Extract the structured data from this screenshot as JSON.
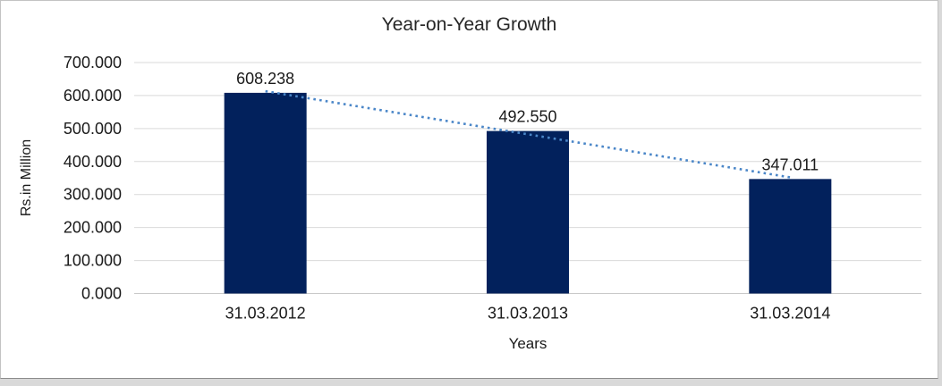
{
  "chart_data": {
    "type": "bar",
    "title": "Year-on-Year Growth",
    "categories": [
      "31.03.2012",
      "31.03.2013",
      "31.03.2014"
    ],
    "values": [
      608.238,
      492.55,
      347.011
    ],
    "value_labels": [
      "608.238",
      "492.550",
      "347.011"
    ],
    "xlabel": "Years",
    "ylabel": "Rs.in Million",
    "ylim": [
      0,
      700
    ],
    "ytick_step": 100,
    "ytick_labels": [
      "0.000",
      "100.000",
      "200.000",
      "300.000",
      "400.000",
      "500.000",
      "600.000",
      "700.000"
    ],
    "grid": true,
    "legend": "none",
    "trendline": {
      "type": "linear",
      "style": "dotted"
    },
    "colors": {
      "bar": "#02215C",
      "trendline": "#4A86C8",
      "gridline": "#D9D9D9",
      "axis_line": "#C9C9C9",
      "text": "#1A1A1A"
    }
  }
}
